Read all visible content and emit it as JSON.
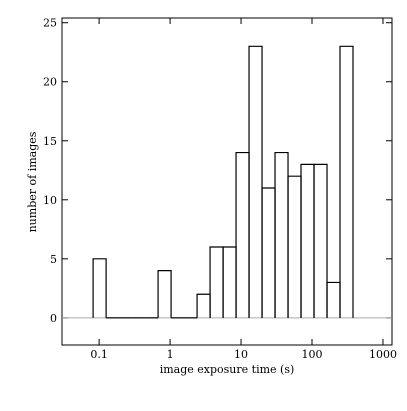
{
  "chart_data": {
    "type": "histogram",
    "xlabel": "image exposure time (s)",
    "ylabel": "number of images",
    "bins": [
      0.0823,
      0.1255,
      0.191,
      0.2916,
      0.4444,
      0.6776,
      1.033,
      1.575,
      2.401,
      3.66,
      5.58,
      8.503,
      12.96,
      19.76,
      30.12,
      45.92,
      70.0,
      106.7,
      162.7,
      248.0,
      378.0
    ],
    "values": [
      5,
      0,
      0,
      0,
      0,
      4,
      0,
      0,
      2,
      6,
      6,
      14,
      23,
      11,
      14,
      12,
      13,
      13,
      3,
      23
    ],
    "color": "#000000",
    "xscale": "log",
    "zero_line": true,
    "xlim": [
      0.03,
      1340
    ],
    "ylim": [
      -2.3,
      25.4
    ],
    "xticks": [
      {
        "value": 0.1,
        "label": "0.1"
      },
      1,
      10,
      100,
      1000
    ],
    "yticks": [
      0,
      5,
      10,
      15,
      20,
      25
    ]
  }
}
